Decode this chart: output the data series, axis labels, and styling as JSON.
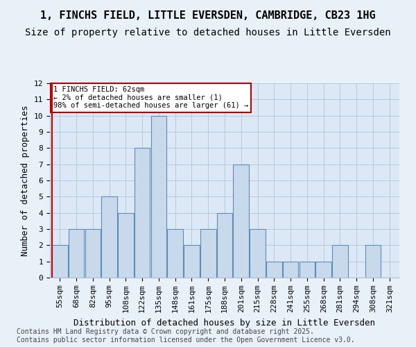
{
  "title_line1": "1, FINCHS FIELD, LITTLE EVERSDEN, CAMBRIDGE, CB23 1HG",
  "title_line2": "Size of property relative to detached houses in Little Eversden",
  "xlabel": "Distribution of detached houses by size in Little Eversden",
  "ylabel": "Number of detached properties",
  "bins": [
    "55sqm",
    "68sqm",
    "82sqm",
    "95sqm",
    "108sqm",
    "122sqm",
    "135sqm",
    "148sqm",
    "161sqm",
    "175sqm",
    "188sqm",
    "201sqm",
    "215sqm",
    "228sqm",
    "241sqm",
    "255sqm",
    "268sqm",
    "281sqm",
    "294sqm",
    "308sqm",
    "321sqm"
  ],
  "values": [
    2,
    3,
    3,
    5,
    4,
    8,
    10,
    3,
    2,
    3,
    4,
    7,
    3,
    1,
    1,
    1,
    1,
    2,
    0,
    2,
    0
  ],
  "bar_color": "#c9d9ec",
  "bar_edge_color": "#5b8db8",
  "highlight_color": "#c00000",
  "annotation_text": "1 FINCHS FIELD: 62sqm\n← 2% of detached houses are smaller (1)\n98% of semi-detached houses are larger (61) →",
  "annotation_box_color": "#ffffff",
  "annotation_box_edge": "#c00000",
  "background_color": "#e8f0f8",
  "plot_bg_color": "#dce8f5",
  "ylim": [
    0,
    12
  ],
  "yticks": [
    0,
    1,
    2,
    3,
    4,
    5,
    6,
    7,
    8,
    9,
    10,
    11,
    12
  ],
  "footer": "Contains HM Land Registry data © Crown copyright and database right 2025.\nContains public sector information licensed under the Open Government Licence v3.0.",
  "title_fontsize": 11,
  "subtitle_fontsize": 10,
  "axis_label_fontsize": 9,
  "tick_fontsize": 8,
  "footer_fontsize": 7
}
